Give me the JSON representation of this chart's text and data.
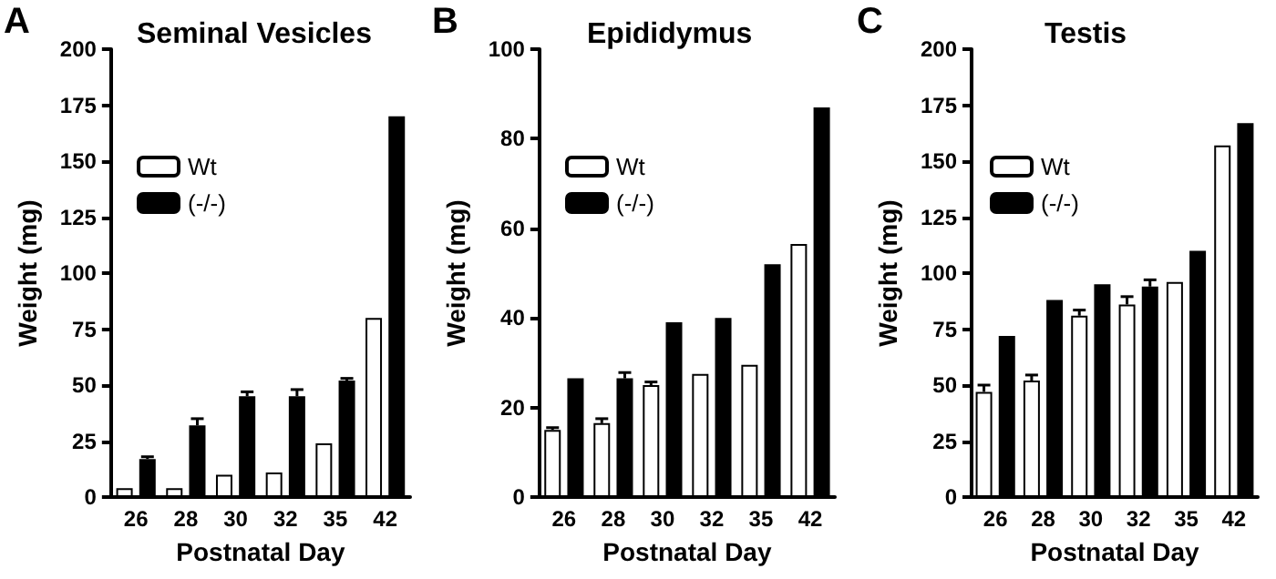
{
  "chart_data": [
    {
      "type": "bar",
      "title": "Seminal Vesicles",
      "annotations": [
        "A"
      ],
      "xlabel": "Postnatal Day",
      "ylabel": "Weight (mg)",
      "categories": [
        "26",
        "28",
        "30",
        "32",
        "35",
        "42"
      ],
      "ylim": [
        0,
        200
      ],
      "yticks": [
        0,
        25,
        50,
        75,
        100,
        125,
        150,
        175,
        200
      ],
      "grid": false,
      "legend": "top left",
      "series": [
        {
          "name": "Wt",
          "color": "#ffffff",
          "values": [
            4,
            4,
            10,
            11,
            24,
            80
          ]
        },
        {
          "name": "(-/-)",
          "color": "#000000",
          "values": [
            17,
            32,
            45,
            45,
            52,
            170
          ],
          "errors": [
            1,
            3,
            2,
            3,
            1,
            null
          ]
        }
      ]
    },
    {
      "type": "bar",
      "title": "Epididymus",
      "annotations": [
        "B"
      ],
      "xlabel": "Postnatal Day",
      "ylabel": "Weight (mg)",
      "categories": [
        "26",
        "28",
        "30",
        "32",
        "35",
        "42"
      ],
      "ylim": [
        0,
        100
      ],
      "yticks": [
        0,
        20,
        40,
        60,
        80,
        100
      ],
      "grid": false,
      "legend": "top left",
      "series": [
        {
          "name": "Wt",
          "color": "#ffffff",
          "values": [
            15,
            16.5,
            25,
            27.5,
            29.5,
            56.5
          ],
          "errors": [
            0.5,
            1,
            0.7,
            null,
            null,
            null
          ]
        },
        {
          "name": "(-/-)",
          "color": "#000000",
          "values": [
            26.5,
            26.5,
            39,
            40,
            52,
            87
          ],
          "errors": [
            null,
            1.3,
            null,
            null,
            null,
            null
          ]
        }
      ]
    },
    {
      "type": "bar",
      "title": "Testis",
      "annotations": [
        "C"
      ],
      "xlabel": "Postnatal Day",
      "ylabel": "Weight (mg)",
      "categories": [
        "26",
        "28",
        "30",
        "32",
        "35",
        "42"
      ],
      "ylim": [
        0,
        200
      ],
      "yticks": [
        0,
        25,
        50,
        75,
        100,
        125,
        150,
        175,
        200
      ],
      "grid": false,
      "legend": "top left",
      "series": [
        {
          "name": "Wt",
          "color": "#ffffff",
          "values": [
            47,
            52,
            81,
            86,
            96,
            157
          ],
          "errors": [
            3,
            2.5,
            2.5,
            3.5,
            null,
            null
          ]
        },
        {
          "name": "(-/-)",
          "color": "#000000",
          "values": [
            72,
            88,
            95,
            94,
            110,
            167
          ],
          "errors": [
            null,
            null,
            null,
            3,
            null,
            null
          ]
        }
      ]
    }
  ]
}
